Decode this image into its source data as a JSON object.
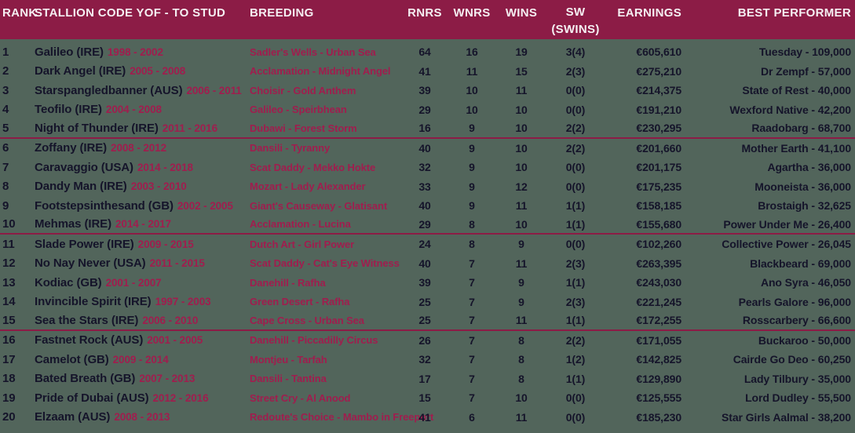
{
  "colors": {
    "background": "#52655b",
    "header_background": "#8c1c46",
    "header_text": "#f5eff2",
    "separator": "#8c1c46",
    "primary_text": "#15142a",
    "accent_text": "#a01d4e"
  },
  "table": {
    "headers": [
      "RANK",
      "STALLION CODE YOF - TO STUD",
      "BREEDING",
      "RNRS",
      "WNRS",
      "WINS",
      "SW",
      "EARNINGS",
      "BEST PERFORMER"
    ],
    "sw_subheader": "(SWINS)",
    "separator_after_ranks": [
      5,
      10,
      15
    ],
    "rows": [
      {
        "rank": "1",
        "name": "Galileo (IRE)",
        "years": "1998 - 2002",
        "breeding": "Sadler's Wells - Urban Sea",
        "rnrs": "64",
        "wnrs": "16",
        "wins": "19",
        "sw": "3(4)",
        "earnings": "€605,610",
        "best": "Tuesday - 109,000"
      },
      {
        "rank": "2",
        "name": "Dark Angel (IRE)",
        "years": "2005 - 2008",
        "breeding": "Acclamation - Midnight Angel",
        "rnrs": "41",
        "wnrs": "11",
        "wins": "15",
        "sw": "2(3)",
        "earnings": "€275,210",
        "best": "Dr Zempf - 57,000"
      },
      {
        "rank": "3",
        "name": "Starspangledbanner (AUS)",
        "years": "2006 - 2011",
        "breeding": "Choisir - Gold Anthem",
        "rnrs": "39",
        "wnrs": "10",
        "wins": "11",
        "sw": "0(0)",
        "earnings": "€214,375",
        "best": "State of Rest - 40,000"
      },
      {
        "rank": "4",
        "name": "Teofilo (IRE)",
        "years": "2004 - 2008",
        "breeding": "Galileo - Speirbhean",
        "rnrs": "29",
        "wnrs": "10",
        "wins": "10",
        "sw": "0(0)",
        "earnings": "€191,210",
        "best": "Wexford Native - 42,200"
      },
      {
        "rank": "5",
        "name": "Night of Thunder (IRE)",
        "years": "2011 - 2016",
        "breeding": "Dubawi - Forest Storm",
        "rnrs": "16",
        "wnrs": "9",
        "wins": "10",
        "sw": "2(2)",
        "earnings": "€230,295",
        "best": "Raadobarg - 68,700"
      },
      {
        "rank": "6",
        "name": "Zoffany (IRE)",
        "years": "2008 - 2012",
        "breeding": "Dansili - Tyranny",
        "rnrs": "40",
        "wnrs": "9",
        "wins": "10",
        "sw": "2(2)",
        "earnings": "€201,660",
        "best": "Mother Earth - 41,100"
      },
      {
        "rank": "7",
        "name": "Caravaggio (USA)",
        "years": "2014 - 2018",
        "breeding": "Scat Daddy - Mekko Hokte",
        "rnrs": "32",
        "wnrs": "9",
        "wins": "10",
        "sw": "0(0)",
        "earnings": "€201,175",
        "best": "Agartha - 36,000"
      },
      {
        "rank": "8",
        "name": "Dandy Man (IRE)",
        "years": "2003 - 2010",
        "breeding": "Mozart - Lady Alexander",
        "rnrs": "33",
        "wnrs": "9",
        "wins": "12",
        "sw": "0(0)",
        "earnings": "€175,235",
        "best": "Mooneista - 36,000"
      },
      {
        "rank": "9",
        "name": "Footstepsinthesand (GB)",
        "years": "2002 - 2005",
        "breeding": "Giant's Causeway - Glatisant",
        "rnrs": "40",
        "wnrs": "9",
        "wins": "11",
        "sw": "1(1)",
        "earnings": "€158,185",
        "best": "Brostaigh - 32,625"
      },
      {
        "rank": "10",
        "name": "Mehmas (IRE)",
        "years": "2014 - 2017",
        "breeding": "Acclamation - Lucina",
        "rnrs": "29",
        "wnrs": "8",
        "wins": "10",
        "sw": "1(1)",
        "earnings": "€155,680",
        "best": "Power Under Me - 26,400"
      },
      {
        "rank": "11",
        "name": "Slade Power (IRE)",
        "years": "2009 - 2015",
        "breeding": "Dutch Art - Girl Power",
        "rnrs": "24",
        "wnrs": "8",
        "wins": "9",
        "sw": "0(0)",
        "earnings": "€102,260",
        "best": "Collective Power - 26,045"
      },
      {
        "rank": "12",
        "name": "No Nay Never (USA)",
        "years": "2011 - 2015",
        "breeding": "Scat Daddy - Cat's Eye Witness",
        "rnrs": "40",
        "wnrs": "7",
        "wins": "11",
        "sw": "2(3)",
        "earnings": "€263,395",
        "best": "Blackbeard - 69,000"
      },
      {
        "rank": "13",
        "name": "Kodiac (GB)",
        "years": "2001 - 2007",
        "breeding": "Danehill - Rafha",
        "rnrs": "39",
        "wnrs": "7",
        "wins": "9",
        "sw": "1(1)",
        "earnings": "€243,030",
        "best": "Ano Syra - 46,050"
      },
      {
        "rank": "14",
        "name": "Invincible Spirit (IRE)",
        "years": "1997 - 2003",
        "breeding": "Green Desert - Rafha",
        "rnrs": "25",
        "wnrs": "7",
        "wins": "9",
        "sw": "2(3)",
        "earnings": "€221,245",
        "best": "Pearls Galore - 96,000"
      },
      {
        "rank": "15",
        "name": "Sea the Stars (IRE)",
        "years": "2006 - 2010",
        "breeding": "Cape Cross - Urban Sea",
        "rnrs": "25",
        "wnrs": "7",
        "wins": "11",
        "sw": "1(1)",
        "earnings": "€172,255",
        "best": "Rosscarbery - 66,600"
      },
      {
        "rank": "16",
        "name": "Fastnet Rock (AUS)",
        "years": "2001 - 2005",
        "breeding": "Danehill - Piccadilly Circus",
        "rnrs": "26",
        "wnrs": "7",
        "wins": "8",
        "sw": "2(2)",
        "earnings": "€171,055",
        "best": "Buckaroo - 50,000"
      },
      {
        "rank": "17",
        "name": "Camelot (GB)",
        "years": "2009 - 2014",
        "breeding": "Montjeu - Tarfah",
        "rnrs": "32",
        "wnrs": "7",
        "wins": "8",
        "sw": "1(2)",
        "earnings": "€142,825",
        "best": "Cairde Go Deo - 60,250"
      },
      {
        "rank": "18",
        "name": "Bated Breath (GB)",
        "years": "2007 - 2013",
        "breeding": "Dansili - Tantina",
        "rnrs": "17",
        "wnrs": "7",
        "wins": "8",
        "sw": "1(1)",
        "earnings": "€129,890",
        "best": "Lady Tilbury - 35,000"
      },
      {
        "rank": "19",
        "name": "Pride of Dubai (AUS)",
        "years": "2012 - 2016",
        "breeding": "Street Cry - Al Anood",
        "rnrs": "15",
        "wnrs": "7",
        "wins": "10",
        "sw": "0(0)",
        "earnings": "€125,555",
        "best": "Lord Dudley - 55,500"
      },
      {
        "rank": "20",
        "name": "Elzaam (AUS)",
        "years": "2008 - 2013",
        "breeding": "Redoute's Choice - Mambo in Freeport",
        "rnrs": "41",
        "wnrs": "6",
        "wins": "11",
        "sw": "0(0)",
        "earnings": "€185,230",
        "best": "Star Girls Aalmal - 38,200"
      }
    ]
  }
}
